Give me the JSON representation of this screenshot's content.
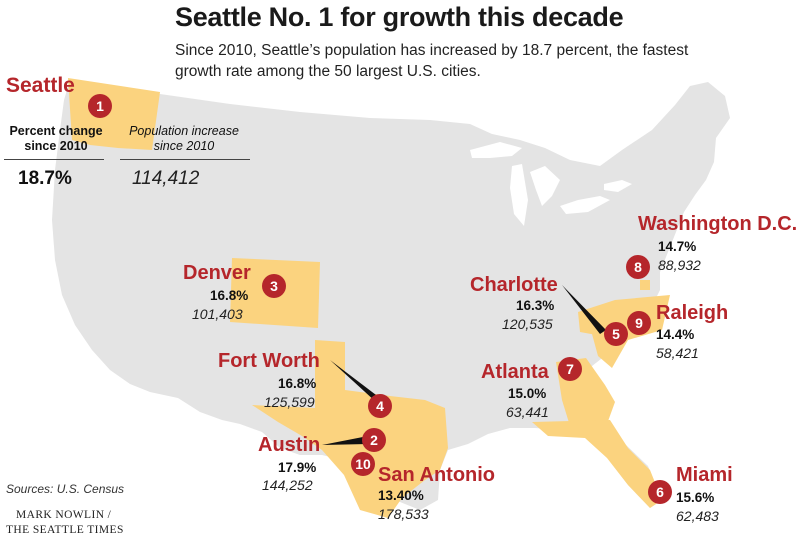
{
  "title": "Seattle No. 1 for growth this decade",
  "subtitle": "Since 2010, Seattle’s population has increased by 18.7 percent, the fastest growth rate among the 50 largest U.S. cities.",
  "legend": {
    "city": "Seattle",
    "rank": "1",
    "col1_header": "Percent change since 2010",
    "col2_header": "Population increase since 2010",
    "col1_value": "18.7%",
    "col2_value": "114,412"
  },
  "cities": [
    {
      "rank": "1",
      "name": "Seattle",
      "percent": "18.7%",
      "increase": "114,412"
    },
    {
      "rank": "2",
      "name": "Austin",
      "percent": "17.9%",
      "increase": "144,252"
    },
    {
      "rank": "3",
      "name": "Denver",
      "percent": "16.8%",
      "increase": "101,403"
    },
    {
      "rank": "4",
      "name": "Fort Worth",
      "percent": "16.8%",
      "increase": "125,599"
    },
    {
      "rank": "5",
      "name": "Charlotte",
      "percent": "16.3%",
      "increase": "120,535"
    },
    {
      "rank": "6",
      "name": "Miami",
      "percent": "15.6%",
      "increase": "62,483"
    },
    {
      "rank": "7",
      "name": "Atlanta",
      "percent": "15.0%",
      "increase": "63,441"
    },
    {
      "rank": "8",
      "name": "Washington D.C.",
      "percent": "14.7%",
      "increase": "88,932"
    },
    {
      "rank": "9",
      "name": "Raleigh",
      "percent": "14.4%",
      "increase": "58,421"
    },
    {
      "rank": "10",
      "name": "San Antonio",
      "percent": "13.40%",
      "increase": "178,533"
    }
  ],
  "source": "Sources: U.S. Census",
  "credit_line1": "MARK NOWLIN /",
  "credit_line2": "THE SEATTLE TIMES",
  "colors": {
    "map": "#e4e4e4",
    "highlight": "#fbd37f",
    "accent": "#b5262b"
  }
}
